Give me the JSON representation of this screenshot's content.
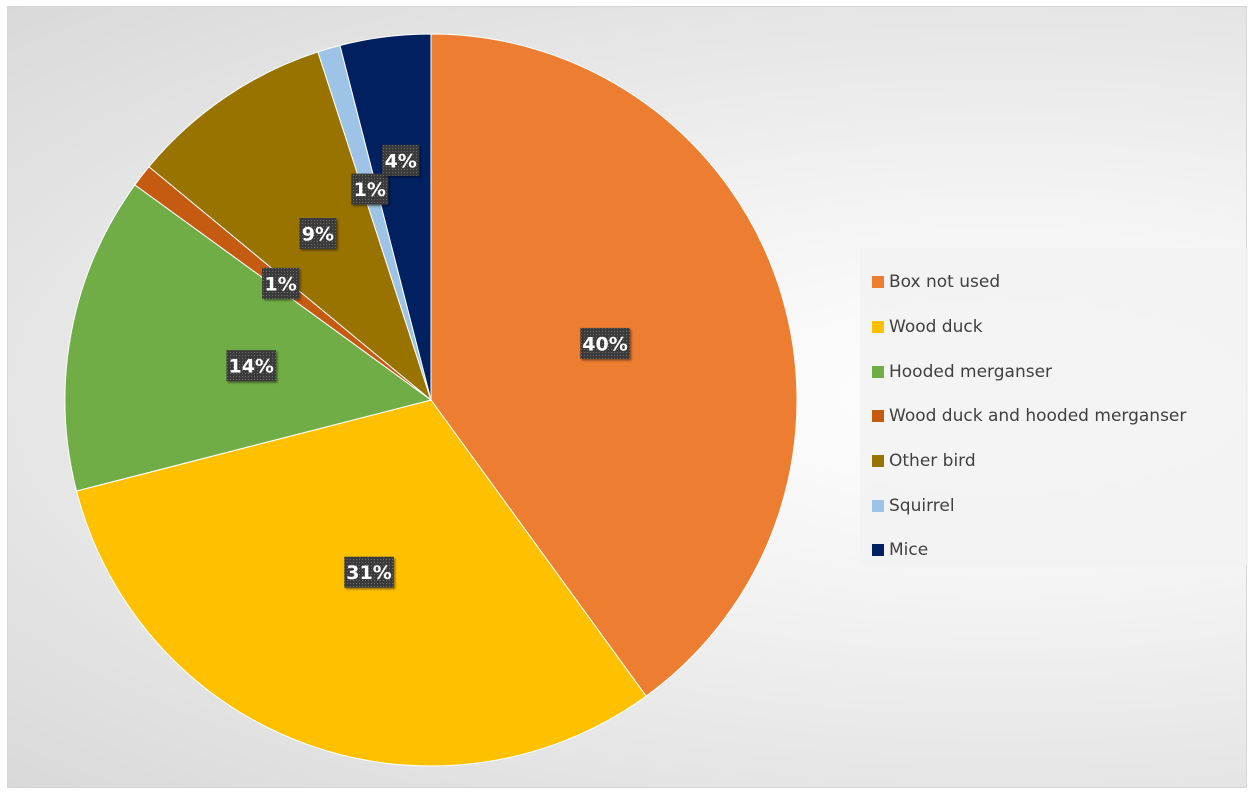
{
  "chart_data": {
    "type": "pie",
    "title": "",
    "categories": [
      "Box not used",
      "Wood duck",
      "Hooded merganser",
      "Wood duck and hooded merganser",
      "Other bird",
      "Squirrel",
      "Mice"
    ],
    "values": [
      40,
      31,
      14,
      1,
      9,
      1,
      4
    ],
    "data_labels": [
      "40%",
      "31%",
      "14%",
      "1%",
      "9%",
      "1%",
      "4%"
    ],
    "colors": [
      "#ED7D31",
      "#FFC000",
      "#70AD47",
      "#C55A11",
      "#997300",
      "#9DC3E6",
      "#002060"
    ],
    "legend_position": "right",
    "start_angle": "12 o'clock",
    "direction": "clockwise"
  },
  "legend": {
    "items": [
      {
        "label": "Box not used",
        "color": "#ED7D31"
      },
      {
        "label": "Wood duck",
        "color": "#FFC000"
      },
      {
        "label": "Hooded merganser",
        "color": "#70AD47"
      },
      {
        "label": "Wood duck and hooded merganser",
        "color": "#C55A11"
      },
      {
        "label": "Other bird",
        "color": "#997300"
      },
      {
        "label": "Squirrel",
        "color": "#9DC3E6"
      },
      {
        "label": "Mice",
        "color": "#002060"
      }
    ]
  }
}
